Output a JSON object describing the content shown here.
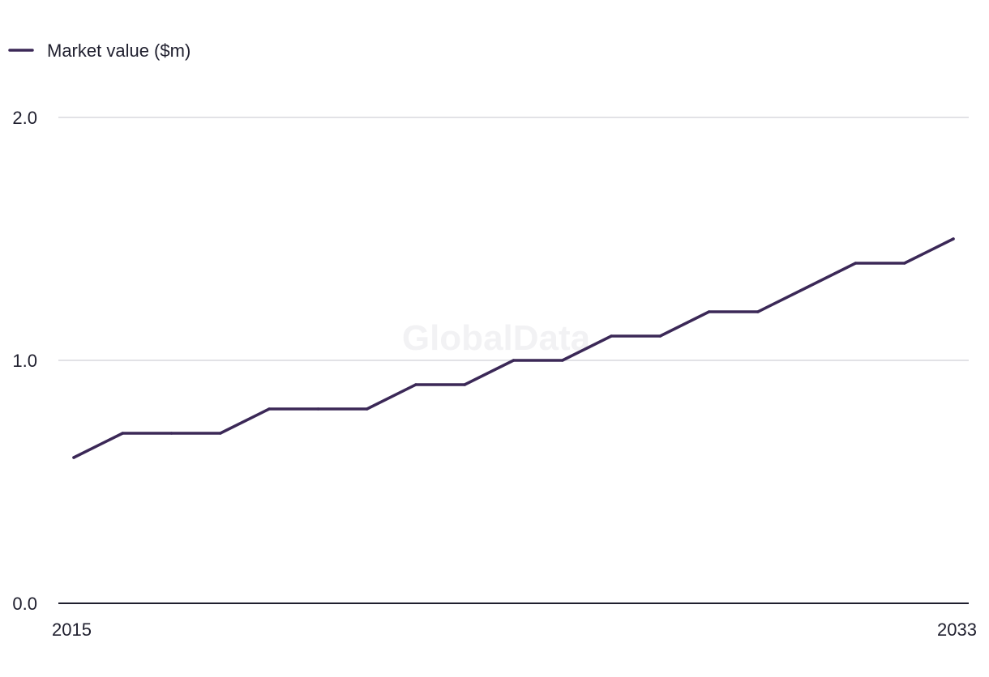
{
  "chart_data": {
    "type": "line",
    "title": "",
    "xlabel": "",
    "ylabel": "",
    "legend": {
      "position": "top-left",
      "label": "Market value ($m)"
    },
    "x": [
      2015,
      2016,
      2017,
      2018,
      2019,
      2020,
      2021,
      2022,
      2023,
      2024,
      2025,
      2026,
      2027,
      2028,
      2029,
      2030,
      2031,
      2032,
      2033
    ],
    "series": [
      {
        "name": "Market value ($m)",
        "values": [
          0.6,
          0.7,
          0.7,
          0.7,
          0.8,
          0.8,
          0.8,
          0.9,
          0.9,
          1.0,
          1.0,
          1.1,
          1.1,
          1.2,
          1.2,
          1.3,
          1.4,
          1.4,
          1.5
        ],
        "color": "#3b2857"
      }
    ],
    "ylim": [
      0,
      2
    ],
    "y_ticks": [
      "0.0",
      "1.0",
      "2.0"
    ],
    "y_tick_values": [
      0,
      1,
      2
    ],
    "x_tick_labels": [
      "2015",
      "2033"
    ],
    "x_tick_values": [
      2015,
      2033
    ],
    "grid": true,
    "colors": {
      "grid": "#d9d9de",
      "axis": "#1f1f2e",
      "text": "#1f1f2e",
      "watermark": "#f2f2f4"
    },
    "watermark": "GlobalData"
  }
}
